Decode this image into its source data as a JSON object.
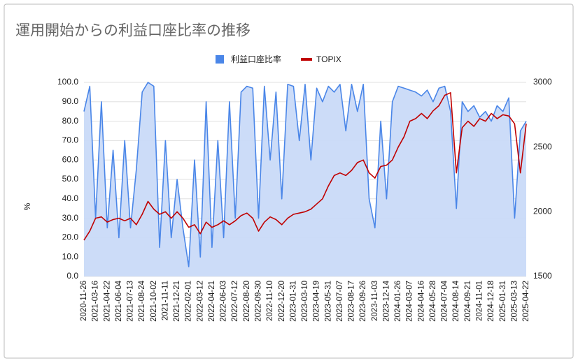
{
  "chart_data": {
    "type": "line",
    "title": "運用開始からの利益口座比率の推移",
    "y_label": "%",
    "categories": [
      "2020-11-26",
      null,
      "2021-03-16",
      null,
      "2021-04-22",
      null,
      "2021-06-04",
      null,
      "2021-07-13",
      null,
      "2021-08-24",
      null,
      "2021-10-02",
      null,
      "2021-11-11",
      null,
      "2021-12-21",
      null,
      "2022-02-01",
      null,
      "2022-03-12",
      null,
      "2022-04-21",
      null,
      "2022-06-03",
      null,
      "2022-07-12",
      null,
      "2022-08-20",
      null,
      "2022-09-30",
      null,
      "2022-11-10",
      null,
      "2022-12-20",
      null,
      "2023-01-31",
      null,
      "2023-03-10",
      null,
      "2023-04-19",
      null,
      "2023-05-31",
      null,
      "2023-07-07",
      null,
      "2023-08-17",
      null,
      "2023-09-26",
      null,
      "2023-11-03",
      null,
      "2023-12-14",
      null,
      "2024-01-26",
      null,
      "2024-03-07",
      null,
      "2024-04-16",
      null,
      "2024-05-28",
      null,
      "2024-07-04",
      null,
      "2024-08-14",
      null,
      "2024-09-21",
      null,
      "2024-11-01",
      null,
      "2024-12-18",
      null,
      "2025-01-31",
      null,
      "2025-03-13",
      null,
      "2025-04-22"
    ],
    "series": [
      {
        "name": "利益口座比率",
        "color": "#4a86e8",
        "area_color": "#c9daf8",
        "values": [
          85,
          98,
          30,
          90,
          25,
          65,
          20,
          70,
          25,
          55,
          95,
          100,
          98,
          15,
          70,
          20,
          50,
          25,
          5,
          60,
          10,
          90,
          15,
          70,
          20,
          90,
          30,
          95,
          98,
          97,
          30,
          98,
          60,
          95,
          40,
          99,
          98,
          70,
          99,
          60,
          97,
          90,
          98,
          95,
          99,
          75,
          99,
          85,
          99,
          40,
          25,
          80,
          40,
          90,
          98,
          97,
          96,
          95,
          93,
          96,
          90,
          97,
          98,
          85,
          35,
          90,
          85,
          88,
          82,
          85,
          80,
          88,
          85,
          92,
          30,
          75,
          80
        ]
      },
      {
        "name": "TOPIX",
        "color": "#c00000",
        "axis": "y2",
        "values": [
          1780,
          1850,
          1950,
          1960,
          1920,
          1940,
          1950,
          1930,
          1950,
          1900,
          1980,
          2080,
          2020,
          1980,
          2000,
          1950,
          2000,
          1950,
          1880,
          1900,
          1830,
          1920,
          1880,
          1900,
          1930,
          1900,
          1930,
          1970,
          1990,
          1950,
          1850,
          1920,
          1960,
          1940,
          1900,
          1950,
          1980,
          1990,
          2000,
          2020,
          2060,
          2100,
          2200,
          2280,
          2300,
          2280,
          2320,
          2380,
          2400,
          2300,
          2260,
          2350,
          2360,
          2400,
          2500,
          2580,
          2700,
          2720,
          2760,
          2720,
          2780,
          2820,
          2900,
          2920,
          2300,
          2650,
          2700,
          2660,
          2720,
          2700,
          2760,
          2720,
          2750,
          2740,
          2680,
          2300,
          2680
        ]
      }
    ],
    "ylim": [
      0,
      100
    ],
    "yticks": [
      {
        "value": 0,
        "label": "0.0"
      },
      {
        "value": 10,
        "label": "10.0"
      },
      {
        "value": 20,
        "label": "20.0"
      },
      {
        "value": 30,
        "label": "30.0"
      },
      {
        "value": 40,
        "label": "40.0"
      },
      {
        "value": 50,
        "label": "50.0"
      },
      {
        "value": 60,
        "label": "60.0"
      },
      {
        "value": 70,
        "label": "70.0"
      },
      {
        "value": 80,
        "label": "80.0"
      },
      {
        "value": 90,
        "label": "90.0"
      },
      {
        "value": 100,
        "label": "100.0"
      }
    ],
    "y2lim": [
      1500,
      3000
    ],
    "y2ticks": [
      1500,
      2000,
      2500,
      3000
    ],
    "grid": true,
    "legend": "top"
  }
}
